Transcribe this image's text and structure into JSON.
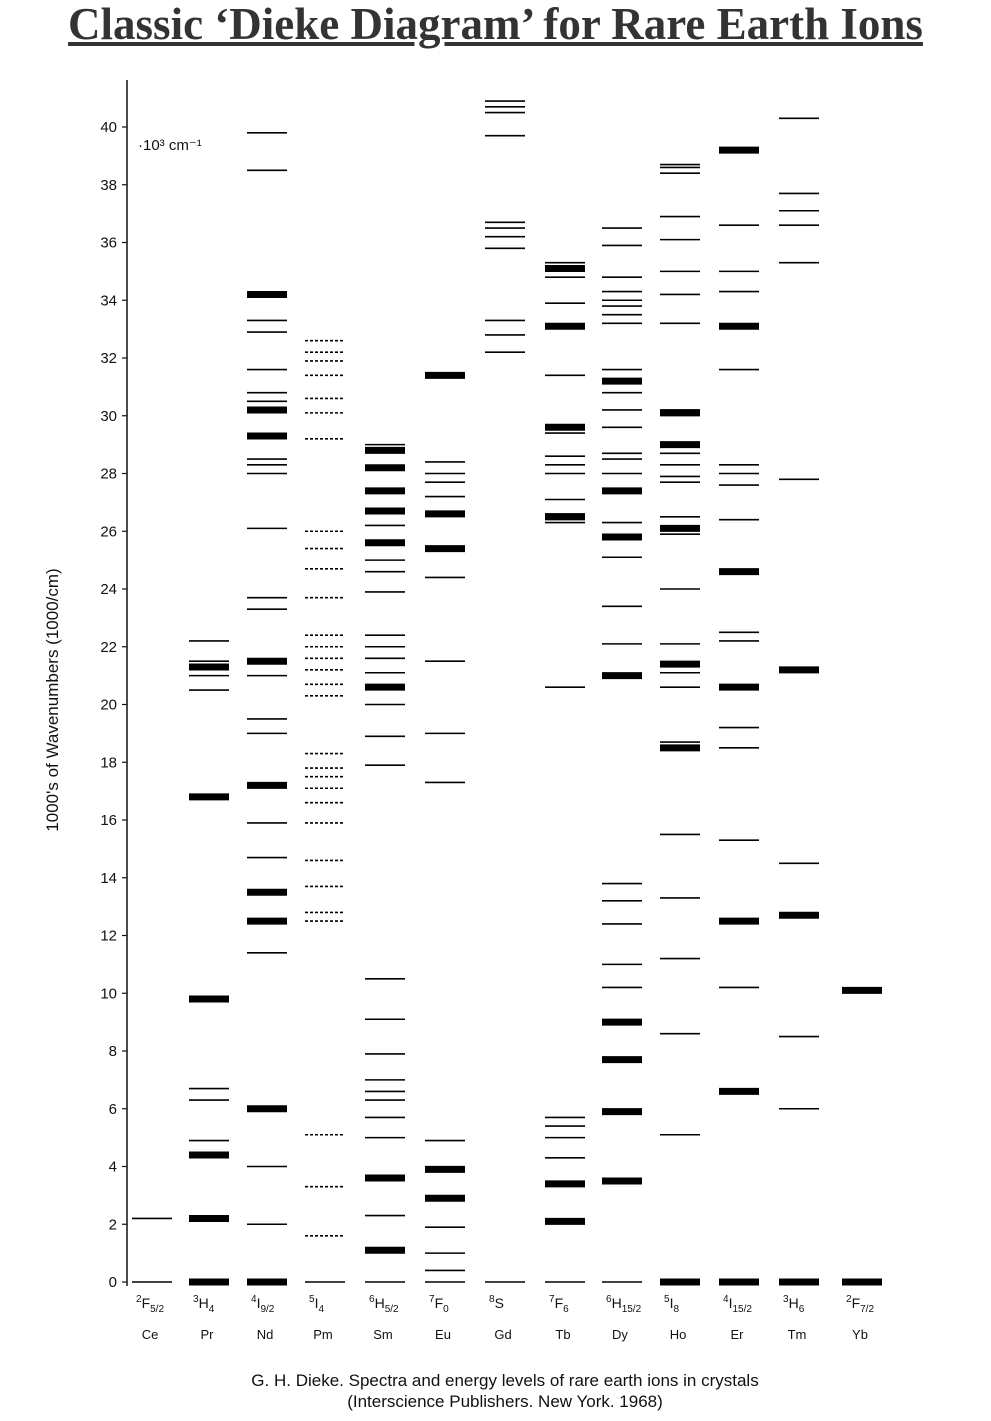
{
  "title": "Classic ‘Dieke Diagram’ for Rare Earth Ions",
  "caption": {
    "line1": "G. H. Dieke. Spectra and energy levels of rare earth ions in crystals",
    "line2": "(Interscience Publishers. New York. 1968)"
  },
  "chart_data": {
    "type": "energy-level diagram",
    "ylabel": "1000's of Wavenumbers (1000/cm)",
    "unit_note": "·10³ cm⁻¹",
    "ylim": [
      0,
      41
    ],
    "yticks": [
      0,
      2,
      4,
      6,
      8,
      10,
      12,
      14,
      16,
      18,
      20,
      22,
      24,
      26,
      28,
      30,
      32,
      34,
      36,
      38,
      40
    ],
    "ions": [
      {
        "name": "Ce",
        "ground": {
          "mult": "2",
          "L": "F",
          "J": "5/2"
        },
        "levels": [
          0,
          2.2
        ],
        "strong": []
      },
      {
        "name": "Pr",
        "ground": {
          "mult": "3",
          "L": "H",
          "J": "4"
        },
        "levels": [
          0,
          2.2,
          4.4,
          4.9,
          6.3,
          6.7,
          9.8,
          16.8,
          20.5,
          21.0,
          21.3,
          21.5,
          22.2
        ],
        "strong": [
          0,
          2.2,
          4.4,
          9.8,
          16.8,
          21.3
        ]
      },
      {
        "name": "Nd",
        "ground": {
          "mult": "4",
          "L": "I",
          "J": "9/2"
        },
        "levels": [
          0,
          2.0,
          4.0,
          6.0,
          11.4,
          12.5,
          13.5,
          14.7,
          15.9,
          17.2,
          19.0,
          19.5,
          21.0,
          21.5,
          23.3,
          23.7,
          26.1,
          28.0,
          28.3,
          28.5,
          29.3,
          30.2,
          30.5,
          30.8,
          31.6,
          32.9,
          33.3,
          34.2,
          38.5,
          39.8
        ],
        "strong": [
          0,
          6.0,
          12.5,
          13.5,
          17.2,
          21.5,
          29.3,
          30.2,
          34.2
        ]
      },
      {
        "name": "Pm",
        "ground": {
          "mult": "5",
          "L": "I",
          "J": "4"
        },
        "levels": [
          0,
          1.6,
          3.3,
          5.1,
          12.5,
          12.8,
          13.7,
          14.6,
          15.9,
          16.6,
          17.1,
          17.5,
          17.8,
          18.3,
          20.3,
          20.7,
          21.2,
          21.6,
          22.0,
          22.4,
          23.7,
          24.7,
          25.4,
          26.0,
          29.2,
          30.1,
          30.6,
          31.4,
          31.9,
          32.2,
          32.6
        ],
        "strong": [],
        "dashed": true
      },
      {
        "name": "Sm",
        "ground": {
          "mult": "6",
          "L": "H",
          "J": "5/2"
        },
        "levels": [
          0,
          1.1,
          2.3,
          3.6,
          5.0,
          5.7,
          6.3,
          6.6,
          7.0,
          7.9,
          9.1,
          10.5,
          17.9,
          18.9,
          20.0,
          20.6,
          21.1,
          21.6,
          22.0,
          22.4,
          23.9,
          24.6,
          25.0,
          25.6,
          26.2,
          26.7,
          27.4,
          28.2,
          28.8,
          29.0
        ],
        "strong": [
          1.1,
          3.6,
          20.6,
          25.6,
          26.7,
          27.4,
          28.2,
          28.8
        ]
      },
      {
        "name": "Eu",
        "ground": {
          "mult": "7",
          "L": "F",
          "J": "0"
        },
        "levels": [
          0,
          0.4,
          1.0,
          1.9,
          2.9,
          3.9,
          4.9,
          17.3,
          19.0,
          21.5,
          24.4,
          25.4,
          26.6,
          27.2,
          27.7,
          28.0,
          28.4,
          31.4
        ],
        "strong": [
          2.9,
          3.9,
          25.4,
          31.4,
          26.6
        ]
      },
      {
        "name": "Gd",
        "ground": {
          "mult": "8",
          "L": "S",
          "J": ""
        },
        "levels": [
          0,
          32.2,
          32.8,
          33.3,
          35.8,
          36.2,
          36.5,
          36.7,
          39.7,
          40.5,
          40.7,
          40.9
        ],
        "strong": []
      },
      {
        "name": "Tb",
        "ground": {
          "mult": "7",
          "L": "F",
          "J": "6"
        },
        "levels": [
          0,
          2.1,
          3.4,
          4.3,
          5.0,
          5.4,
          5.7,
          20.6,
          26.3,
          26.5,
          26.6,
          27.1,
          28.0,
          28.3,
          28.6,
          29.4,
          29.6,
          31.4,
          33.1,
          33.9,
          34.8,
          35.1,
          35.3
        ],
        "strong": [
          2.1,
          3.4,
          33.1,
          35.1,
          26.5,
          29.6
        ]
      },
      {
        "name": "Dy",
        "ground": {
          "mult": "6",
          "L": "H",
          "J": "15/2"
        },
        "levels": [
          0,
          3.5,
          5.9,
          7.7,
          9.0,
          10.2,
          11.0,
          12.4,
          13.2,
          13.8,
          21.0,
          22.1,
          23.4,
          25.1,
          25.8,
          26.3,
          27.4,
          28.0,
          28.5,
          28.7,
          29.6,
          30.2,
          30.8,
          31.2,
          31.6,
          33.2,
          33.5,
          33.8,
          34.0,
          34.3,
          34.8,
          35.9,
          36.5
        ],
        "strong": [
          3.5,
          5.9,
          7.7,
          9.0,
          21.0,
          25.8,
          27.4,
          31.2
        ]
      },
      {
        "name": "Ho",
        "ground": {
          "mult": "5",
          "L": "I",
          "J": "8"
        },
        "levels": [
          0,
          5.1,
          8.6,
          11.2,
          13.3,
          15.5,
          18.5,
          18.7,
          20.6,
          21.1,
          21.4,
          22.1,
          24.0,
          25.9,
          26.1,
          26.5,
          27.7,
          27.9,
          28.3,
          28.7,
          29.0,
          30.1,
          30.2,
          33.2,
          34.2,
          35.0,
          36.1,
          36.9,
          38.4,
          38.6,
          38.7
        ],
        "strong": [
          0,
          18.5,
          21.4,
          26.1,
          29.0,
          30.1
        ]
      },
      {
        "name": "Er",
        "ground": {
          "mult": "4",
          "L": "I",
          "J": "15/2"
        },
        "levels": [
          0,
          6.6,
          10.2,
          12.5,
          15.3,
          18.5,
          19.2,
          20.6,
          22.2,
          22.5,
          24.6,
          26.4,
          27.6,
          28.0,
          28.3,
          31.6,
          33.1,
          34.3,
          35.0,
          36.6,
          39.2
        ],
        "strong": [
          0,
          6.6,
          12.5,
          20.6,
          24.6,
          33.1,
          39.2
        ]
      },
      {
        "name": "Tm",
        "ground": {
          "mult": "3",
          "L": "H",
          "J": "6"
        },
        "levels": [
          0,
          6.0,
          8.5,
          12.7,
          14.5,
          21.2,
          27.8,
          35.3,
          36.6,
          37.1,
          37.7,
          40.3
        ],
        "strong": [
          0,
          12.7,
          21.2
        ]
      },
      {
        "name": "Yb",
        "ground": {
          "mult": "2",
          "L": "F",
          "J": "7/2"
        },
        "levels": [
          0,
          10.1
        ],
        "strong": [
          0,
          10.1
        ]
      }
    ]
  }
}
